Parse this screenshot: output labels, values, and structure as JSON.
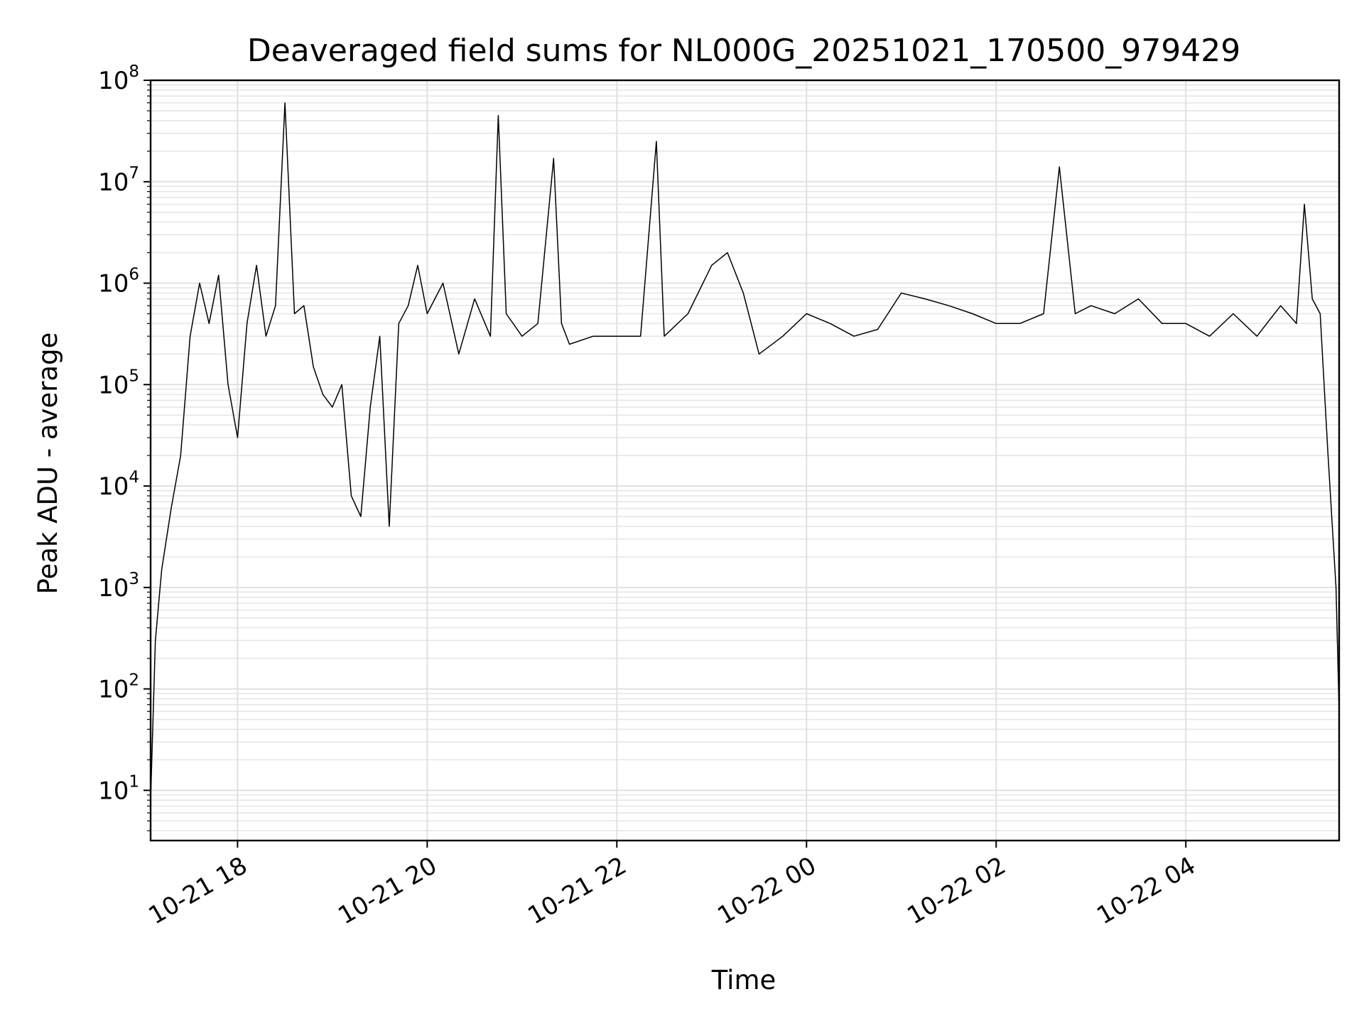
{
  "chart_data": {
    "type": "line",
    "title": "Deaveraged field sums for NL000G_20251021_170500_979429",
    "xlabel": "Time",
    "ylabel": "Peak ADU - average",
    "yscale": "log",
    "ylim": [
      3.2,
      100000000
    ],
    "xlim": [
      "2025-10-21 17:05",
      "2025-10-22 05:37"
    ],
    "grid": true,
    "line_color": "#000000",
    "x_ticks": [
      {
        "label": "10-21 18",
        "value": "2025-10-21 18:00"
      },
      {
        "label": "10-21 20",
        "value": "2025-10-21 20:00"
      },
      {
        "label": "10-21 22",
        "value": "2025-10-21 22:00"
      },
      {
        "label": "10-22 00",
        "value": "2025-10-22 00:00"
      },
      {
        "label": "10-22 02",
        "value": "2025-10-22 02:00"
      },
      {
        "label": "10-22 04",
        "value": "2025-10-22 04:00"
      }
    ],
    "y_ticks": [
      {
        "base": "10",
        "exp": "1",
        "value": 10
      },
      {
        "base": "10",
        "exp": "2",
        "value": 100
      },
      {
        "base": "10",
        "exp": "3",
        "value": 1000
      },
      {
        "base": "10",
        "exp": "4",
        "value": 10000
      },
      {
        "base": "10",
        "exp": "5",
        "value": 100000
      },
      {
        "base": "10",
        "exp": "6",
        "value": 1000000
      },
      {
        "base": "10",
        "exp": "7",
        "value": 10000000
      },
      {
        "base": "10",
        "exp": "8",
        "value": 100000000
      }
    ],
    "series": [
      {
        "x": [
          "2025-10-21 17:05",
          "2025-10-21 17:08",
          "2025-10-21 17:12",
          "2025-10-21 17:18",
          "2025-10-21 17:24",
          "2025-10-21 17:30",
          "2025-10-21 17:36",
          "2025-10-21 17:42",
          "2025-10-21 17:48",
          "2025-10-21 17:54",
          "2025-10-21 18:00",
          "2025-10-21 18:06",
          "2025-10-21 18:12",
          "2025-10-21 18:18",
          "2025-10-21 18:24",
          "2025-10-21 18:30",
          "2025-10-21 18:36",
          "2025-10-21 18:42",
          "2025-10-21 18:48",
          "2025-10-21 18:54",
          "2025-10-21 19:00",
          "2025-10-21 19:06",
          "2025-10-21 19:12",
          "2025-10-21 19:18",
          "2025-10-21 19:24",
          "2025-10-21 19:30",
          "2025-10-21 19:36",
          "2025-10-21 19:42",
          "2025-10-21 19:48",
          "2025-10-21 19:54",
          "2025-10-21 20:00",
          "2025-10-21 20:10",
          "2025-10-21 20:20",
          "2025-10-21 20:30",
          "2025-10-21 20:40",
          "2025-10-21 20:45",
          "2025-10-21 20:50",
          "2025-10-21 21:00",
          "2025-10-21 21:10",
          "2025-10-21 21:20",
          "2025-10-21 21:25",
          "2025-10-21 21:30",
          "2025-10-21 21:45",
          "2025-10-21 22:00",
          "2025-10-21 22:15",
          "2025-10-21 22:25",
          "2025-10-21 22:30",
          "2025-10-21 22:45",
          "2025-10-21 23:00",
          "2025-10-21 23:10",
          "2025-10-21 23:20",
          "2025-10-21 23:30",
          "2025-10-21 23:45",
          "2025-10-22 00:00",
          "2025-10-22 00:15",
          "2025-10-22 00:30",
          "2025-10-22 00:45",
          "2025-10-22 01:00",
          "2025-10-22 01:15",
          "2025-10-22 01:30",
          "2025-10-22 01:45",
          "2025-10-22 02:00",
          "2025-10-22 02:15",
          "2025-10-22 02:30",
          "2025-10-22 02:40",
          "2025-10-22 02:50",
          "2025-10-22 03:00",
          "2025-10-22 03:15",
          "2025-10-22 03:30",
          "2025-10-22 03:45",
          "2025-10-22 04:00",
          "2025-10-22 04:15",
          "2025-10-22 04:30",
          "2025-10-22 04:45",
          "2025-10-22 05:00",
          "2025-10-22 05:10",
          "2025-10-22 05:15",
          "2025-10-22 05:20",
          "2025-10-22 05:25",
          "2025-10-22 05:30",
          "2025-10-22 05:35",
          "2025-10-22 05:37"
        ],
        "y": [
          8,
          300,
          1500,
          6000,
          20000,
          300000,
          1000000,
          400000,
          1200000,
          100000,
          30000,
          400000,
          1500000,
          300000,
          600000,
          60000000,
          500000,
          600000,
          150000,
          80000,
          60000,
          100000,
          8000,
          5000,
          60000,
          300000,
          4000,
          400000,
          600000,
          1500000,
          500000,
          1000000,
          200000,
          700000,
          300000,
          45000000,
          500000,
          300000,
          400000,
          17000000,
          400000,
          250000,
          300000,
          300000,
          300000,
          25000000,
          300000,
          500000,
          1500000,
          2000000,
          800000,
          200000,
          300000,
          500000,
          400000,
          300000,
          350000,
          800000,
          700000,
          600000,
          500000,
          400000,
          400000,
          500000,
          14000000,
          500000,
          600000,
          500000,
          700000,
          400000,
          400000,
          300000,
          500000,
          300000,
          600000,
          400000,
          6000000,
          700000,
          500000,
          20000,
          1000,
          60
        ]
      }
    ]
  }
}
